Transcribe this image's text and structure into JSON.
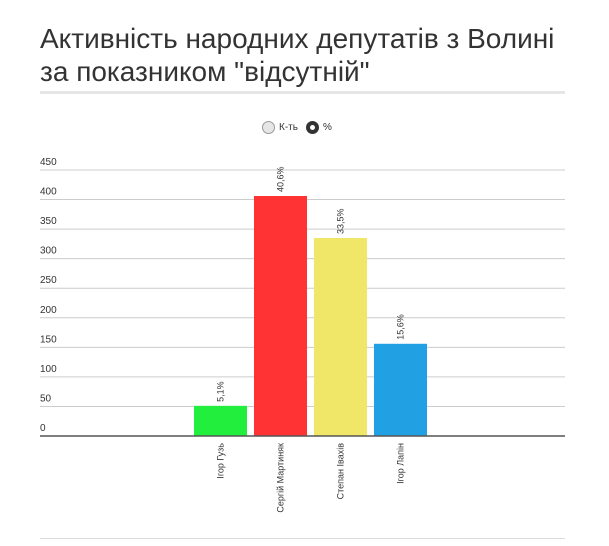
{
  "title": "Активність народних депутатів з Волині за показником \"відсутній\"",
  "toggle": {
    "options": [
      {
        "label": "К-ть",
        "selected": false
      },
      {
        "label": "%",
        "selected": true
      }
    ]
  },
  "chart_data": {
    "type": "bar",
    "categories": [
      "Ігор Гузь",
      "Сергій Мартиняк",
      "Степан Івахів",
      "Ігор Лапін"
    ],
    "values": [
      51,
      406,
      335,
      156
    ],
    "data_labels": [
      "5,1%",
      "40,6%",
      "33,5%",
      "15,6%"
    ],
    "colors": [
      "#22ee3d",
      "#ff3333",
      "#f0e668",
      "#22a0e4"
    ],
    "yticks": [
      0,
      50,
      100,
      150,
      200,
      250,
      300,
      350,
      400,
      450
    ],
    "ylim": [
      0,
      450
    ],
    "grid": true,
    "legend": "top-center"
  }
}
